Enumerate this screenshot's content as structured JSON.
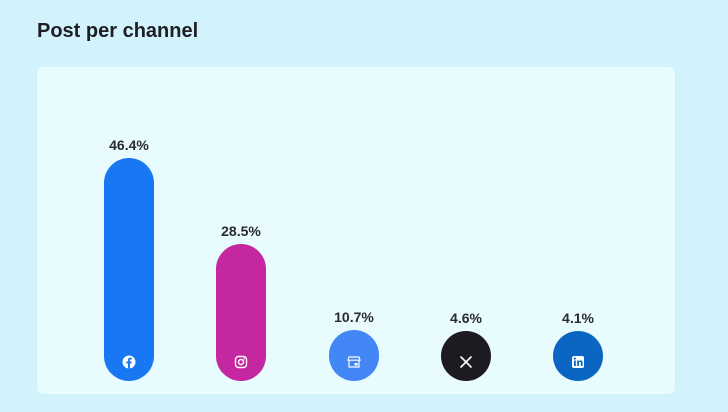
{
  "header": {
    "title": "Post per channel"
  },
  "chart_data": {
    "type": "bar",
    "title": "Post per channel",
    "categories": [
      "Facebook",
      "Instagram",
      "Google Business Profile",
      "X",
      "LinkedIn"
    ],
    "values": [
      46.4,
      28.5,
      10.7,
      4.6,
      4.1
    ],
    "value_labels": [
      "46.4%",
      "28.5%",
      "10.7%",
      "4.6%",
      "4.1%"
    ],
    "unit": "%",
    "colors": [
      "#1877f2",
      "#c4279f",
      "#4287f5",
      "#1d1b22",
      "#0a66c2"
    ],
    "icons": [
      "facebook-icon",
      "instagram-icon",
      "google-business-icon",
      "x-icon",
      "linkedin-icon"
    ],
    "xlabel": "",
    "ylabel": "",
    "grid": false,
    "legend": "none"
  }
}
